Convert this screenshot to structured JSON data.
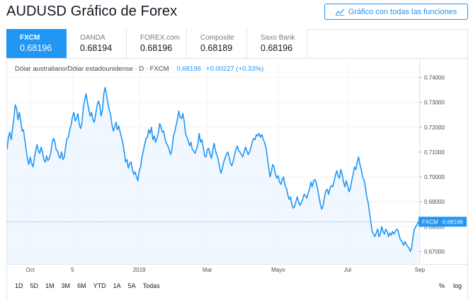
{
  "page": {
    "title": "AUDUSD Gráfico de Forex",
    "full_chart_button": "Gráfico con todas las funciones"
  },
  "tabs": [
    {
      "name": "FXCM",
      "price": "0.68196",
      "active": true
    },
    {
      "name": "OANDA",
      "price": "0.68194",
      "active": false
    },
    {
      "name": "FOREX.com",
      "price": "0.68196",
      "active": false
    },
    {
      "name": "Composite",
      "price": "0.68189",
      "active": false
    },
    {
      "name": "Saxo Bank",
      "price": "0.68196",
      "active": false
    }
  ],
  "legend": {
    "symbol": "Dólar australiano/Dólar estadounidense · D · FXCM",
    "last": "0.68196",
    "change": "+0.00227 (+0.33%)"
  },
  "price_label": {
    "name": "FXCM",
    "value": "0.68196"
  },
  "range_buttons": [
    "1D",
    "5D",
    "1M",
    "3M",
    "6M",
    "YTD",
    "1A",
    "5A",
    "Todas"
  ],
  "scale_buttons": [
    "%",
    "log"
  ],
  "colors": {
    "accent": "#2196f3",
    "line": "#2196f3",
    "area": "#eaf4fe"
  },
  "chart_data": {
    "type": "area",
    "ylim": [
      0.665,
      0.743
    ],
    "y_ticks": [
      "0.74000",
      "0.73000",
      "0.72000",
      "0.71000",
      "0.70000",
      "0.69000",
      "0.68000",
      "0.67000"
    ],
    "y_tick_values": [
      0.74,
      0.73,
      0.72,
      0.71,
      0.7,
      0.69,
      0.68,
      0.67
    ],
    "x_ticks": [
      {
        "label": "Oct",
        "index": 17
      },
      {
        "label": "5",
        "index": 48
      },
      {
        "label": "2019",
        "index": 97
      },
      {
        "label": "Mar",
        "index": 147
      },
      {
        "label": "Mayo",
        "index": 199
      },
      {
        "label": "Jul",
        "index": 250
      },
      {
        "label": "Sep",
        "index": 303
      }
    ],
    "last_value": 0.68196,
    "values": [
      0.711,
      0.716,
      0.718,
      0.715,
      0.7195,
      0.7235,
      0.729,
      0.7275,
      0.723,
      0.726,
      0.723,
      0.7185,
      0.719,
      0.715,
      0.711,
      0.707,
      0.705,
      0.708,
      0.7055,
      0.704,
      0.7075,
      0.7105,
      0.713,
      0.7105,
      0.7095,
      0.712,
      0.71,
      0.707,
      0.706,
      0.7085,
      0.7065,
      0.7075,
      0.7095,
      0.7135,
      0.7155,
      0.7145,
      0.711,
      0.7105,
      0.7085,
      0.7075,
      0.71,
      0.707,
      0.708,
      0.712,
      0.7155,
      0.716,
      0.719,
      0.721,
      0.724,
      0.726,
      0.7225,
      0.7235,
      0.7255,
      0.721,
      0.7195,
      0.722,
      0.728,
      0.731,
      0.7335,
      0.73,
      0.727,
      0.7245,
      0.726,
      0.723,
      0.722,
      0.725,
      0.7285,
      0.7305,
      0.729,
      0.7245,
      0.727,
      0.7335,
      0.736,
      0.733,
      0.7295,
      0.727,
      0.725,
      0.721,
      0.7185,
      0.72,
      0.722,
      0.719,
      0.7205,
      0.718,
      0.716,
      0.7135,
      0.71,
      0.706,
      0.707,
      0.7035,
      0.7055,
      0.706,
      0.703,
      0.701,
      0.702,
      0.7,
      0.6985,
      0.7025,
      0.704,
      0.708,
      0.7105,
      0.713,
      0.7155,
      0.716,
      0.719,
      0.7175,
      0.72,
      0.715,
      0.7165,
      0.714,
      0.7155,
      0.7175,
      0.7215,
      0.72,
      0.718,
      0.7185,
      0.715,
      0.7135,
      0.7125,
      0.711,
      0.709,
      0.711,
      0.716,
      0.718,
      0.7205,
      0.723,
      0.7265,
      0.724,
      0.7235,
      0.7255,
      0.7225,
      0.7175,
      0.716,
      0.7145,
      0.7125,
      0.714,
      0.711,
      0.7105,
      0.7095,
      0.711,
      0.713,
      0.7175,
      0.714,
      0.715,
      0.712,
      0.7085,
      0.708,
      0.711,
      0.7115,
      0.709,
      0.7075,
      0.711,
      0.7135,
      0.7105,
      0.709,
      0.707,
      0.704,
      0.7015,
      0.7035,
      0.706,
      0.7075,
      0.709,
      0.71,
      0.708,
      0.7055,
      0.7045,
      0.7065,
      0.709,
      0.711,
      0.7125,
      0.7105,
      0.71,
      0.709,
      0.708,
      0.71,
      0.712,
      0.7105,
      0.709,
      0.71,
      0.712,
      0.714,
      0.7155,
      0.715,
      0.717,
      0.7165,
      0.7175,
      0.716,
      0.717,
      0.715,
      0.714,
      0.712,
      0.708,
      0.704,
      0.7,
      0.702,
      0.705,
      0.704,
      0.701,
      0.6995,
      0.7005,
      0.698,
      0.697,
      0.699,
      0.7,
      0.6965,
      0.6955,
      0.693,
      0.691,
      0.692,
      0.689,
      0.6875,
      0.688,
      0.69,
      0.692,
      0.69,
      0.6885,
      0.6895,
      0.691,
      0.693,
      0.6925,
      0.6915,
      0.6935,
      0.695,
      0.698,
      0.696,
      0.6985,
      0.699,
      0.6975,
      0.695,
      0.692,
      0.689,
      0.687,
      0.6885,
      0.692,
      0.6945,
      0.695,
      0.693,
      0.6955,
      0.6965,
      0.696,
      0.698,
      0.7005,
      0.7025,
      0.7005,
      0.6995,
      0.703,
      0.701,
      0.698,
      0.696,
      0.6985,
      0.6965,
      0.694,
      0.6955,
      0.6985,
      0.701,
      0.704,
      0.703,
      0.706,
      0.708,
      0.705,
      0.703,
      0.7,
      0.699,
      0.696,
      0.692,
      0.69,
      0.686,
      0.682,
      0.678,
      0.677,
      0.676,
      0.6775,
      0.679,
      0.676,
      0.677,
      0.68,
      0.678,
      0.677,
      0.679,
      0.678,
      0.676,
      0.6775,
      0.6765,
      0.678,
      0.677,
      0.678,
      0.679,
      0.6785,
      0.676,
      0.6745,
      0.674,
      0.6725,
      0.674,
      0.673,
      0.672,
      0.6715,
      0.67,
      0.6715,
      0.676,
      0.679,
      0.68,
      0.681,
      0.682
    ]
  }
}
